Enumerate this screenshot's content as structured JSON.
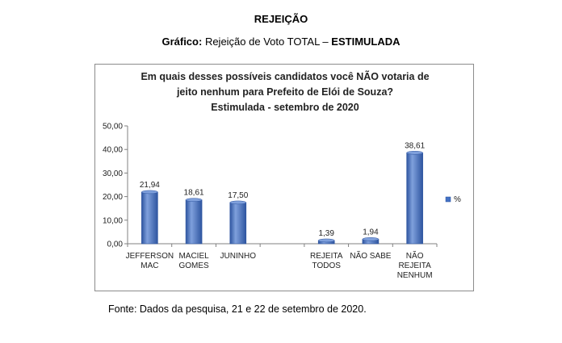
{
  "header": {
    "title": "REJEIÇÃO",
    "subtitle_prefix": "Gráfico:",
    "subtitle_middle": "Rejeição de Voto TOTAL –",
    "subtitle_bold": "ESTIMULADA"
  },
  "chart_data": {
    "type": "bar",
    "title_lines": [
      "Em quais desses possíveis candidatos você NÃO votaria de",
      "jeito nenhum para Prefeito de Elói de Souza?",
      "Estimulada - setembro de 2020"
    ],
    "categories": [
      [
        "JEFFERSON",
        "MAC"
      ],
      [
        "MACIEL",
        "GOMES"
      ],
      [
        "JUNINHO"
      ],
      [],
      [
        "REJEITA",
        "TODOS"
      ],
      [
        "NÃO SABE"
      ],
      [
        "NÃO",
        "REJEITA",
        "NENHUM"
      ]
    ],
    "values": [
      21.94,
      18.61,
      17.5,
      null,
      1.39,
      1.94,
      38.61
    ],
    "value_labels": [
      "21,94",
      "18,61",
      "17,50",
      "",
      "1,39",
      "1,94",
      "38,61"
    ],
    "series": [
      {
        "name": "%",
        "values": [
          21.94,
          18.61,
          17.5,
          null,
          1.39,
          1.94,
          38.61
        ]
      }
    ],
    "ylim": [
      0,
      50
    ],
    "yticks": [
      "0,00",
      "10,00",
      "20,00",
      "30,00",
      "40,00",
      "50,00"
    ],
    "grid": false,
    "legend_position": "right",
    "colors": {
      "bar": "#4472c4",
      "bar_dark": "#2e55a0",
      "bar_light": "#7fa0dc"
    }
  },
  "footer": {
    "source": "Fonte: Dados da pesquisa, 21 e 22 de setembro de 2020."
  }
}
